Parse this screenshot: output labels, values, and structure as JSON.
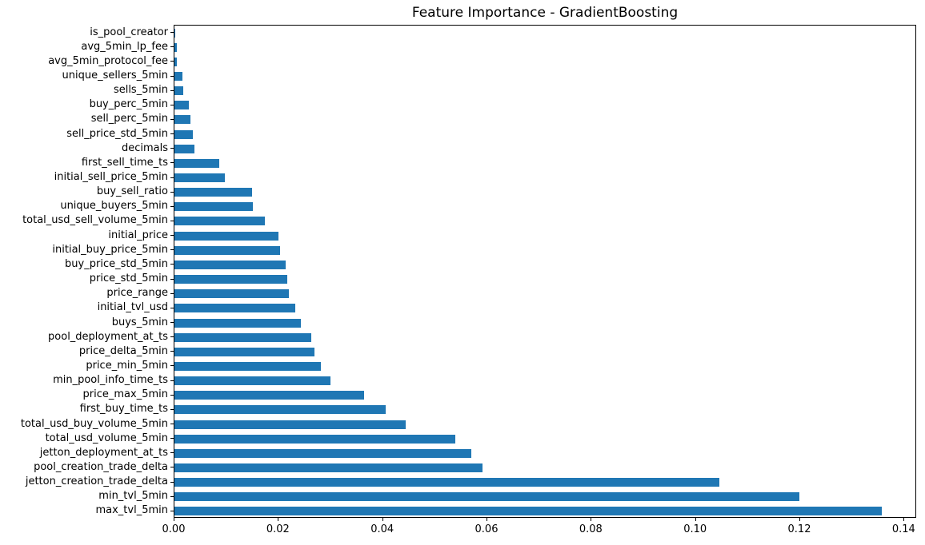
{
  "colors": {
    "bar": "#1f77b4",
    "axis": "#000000",
    "text": "#000000",
    "background": "#ffffff"
  },
  "chart_data": {
    "type": "bar",
    "orientation": "horizontal",
    "title": "Feature Importance - GradientBoosting",
    "xlabel": "",
    "ylabel": "",
    "grid": false,
    "legend": null,
    "xlim": [
      0,
      0.1424
    ],
    "xticks": [
      0.0,
      0.02,
      0.04,
      0.06,
      0.08,
      0.1,
      0.12,
      0.14
    ],
    "xtick_labels": [
      "0.00",
      "0.02",
      "0.04",
      "0.06",
      "0.08",
      "0.10",
      "0.12",
      "0.14"
    ],
    "categories_top_to_bottom": [
      "is_pool_creator",
      "avg_5min_lp_fee",
      "avg_5min_protocol_fee",
      "unique_sellers_5min",
      "sells_5min",
      "buy_perc_5min",
      "sell_perc_5min",
      "sell_price_std_5min",
      "decimals",
      "first_sell_time_ts",
      "initial_sell_price_5min",
      "buy_sell_ratio",
      "unique_buyers_5min",
      "total_usd_sell_volume_5min",
      "initial_price",
      "initial_buy_price_5min",
      "buy_price_std_5min",
      "price_std_5min",
      "price_range",
      "initial_tvl_usd",
      "buys_5min",
      "pool_deployment_at_ts",
      "price_delta_5min",
      "price_min_5min",
      "min_pool_info_time_ts",
      "price_max_5min",
      "first_buy_time_ts",
      "total_usd_buy_volume_5min",
      "total_usd_volume_5min",
      "jetton_deployment_at_ts",
      "pool_creation_trade_delta",
      "jetton_creation_trade_delta",
      "min_tvl_5min",
      "max_tvl_5min"
    ],
    "values_top_to_bottom": [
      0.0001,
      0.0004,
      0.0004,
      0.0015,
      0.0017,
      0.0028,
      0.0031,
      0.0036,
      0.0038,
      0.0086,
      0.0097,
      0.0149,
      0.015,
      0.0173,
      0.0199,
      0.0202,
      0.0214,
      0.0216,
      0.0219,
      0.0232,
      0.0242,
      0.0263,
      0.0269,
      0.0281,
      0.0299,
      0.0363,
      0.0405,
      0.0443,
      0.0538,
      0.0569,
      0.0591,
      0.1045,
      0.1199,
      0.1356
    ]
  }
}
